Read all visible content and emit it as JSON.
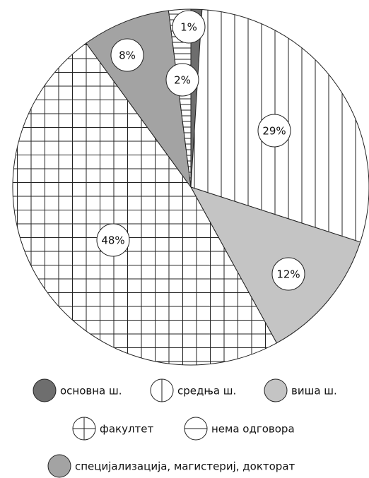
{
  "chart_data": {
    "type": "pie",
    "categories": [
      "основна ш.",
      "средња ш.",
      "виша ш.",
      "факултет",
      "специјализација, магистериј, докторат",
      "нема одговора"
    ],
    "values": [
      1,
      29,
      12,
      48,
      8,
      2
    ],
    "value_labels": [
      "1%",
      "29%",
      "12%",
      "48%",
      "8%",
      "2%"
    ],
    "colors": [
      "#6e6e6e",
      "#ffffff",
      "#c4c4c4",
      "#ffffff",
      "#a3a3a3",
      "#ffffff"
    ],
    "patterns": [
      "solid",
      "vertical",
      "solid",
      "grid",
      "solid",
      "horizontal"
    ]
  }
}
